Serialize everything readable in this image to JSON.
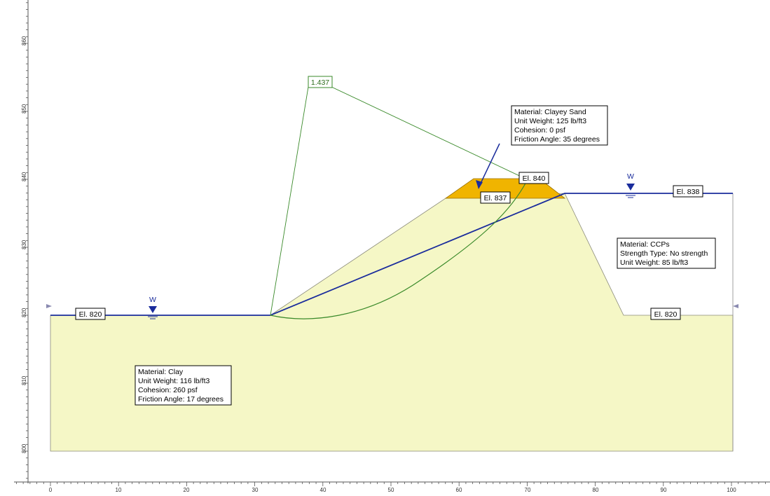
{
  "axes": {
    "x_ticks": [
      "0",
      "10",
      "20",
      "30",
      "40",
      "50",
      "60",
      "70",
      "80",
      "90",
      "100"
    ],
    "y_ticks": [
      "800",
      "810",
      "820",
      "830",
      "840",
      "850",
      "860"
    ]
  },
  "factor_of_safety": "1.437",
  "elevations": {
    "left": "El. 820",
    "crest": "El. 840",
    "bench": "El. 837",
    "right": "El. 838",
    "toe": "El. 820"
  },
  "water_markers": {
    "left": "W",
    "right": "W"
  },
  "materials": {
    "clay": {
      "lines": [
        "Material: Clay",
        "Unit Weight: 116 lb/ft3",
        "Cohesion: 260 psf",
        "Friction Angle: 17 degrees"
      ]
    },
    "clayey_sand": {
      "lines": [
        "Material: Clayey Sand",
        "Unit Weight: 125 lb/ft3",
        "Cohesion: 0 psf",
        "Friction Angle: 35 degrees"
      ]
    },
    "ccps": {
      "lines": [
        "Material: CCPs",
        "Strength Type: No strength",
        "Unit Weight: 85 lb/ft3"
      ]
    }
  },
  "colors": {
    "clay_fill": "#f5f7c6",
    "sand_fill": "#f0b400",
    "water_line": "#1a2c9c",
    "slip_line": "#3a8a2a"
  }
}
